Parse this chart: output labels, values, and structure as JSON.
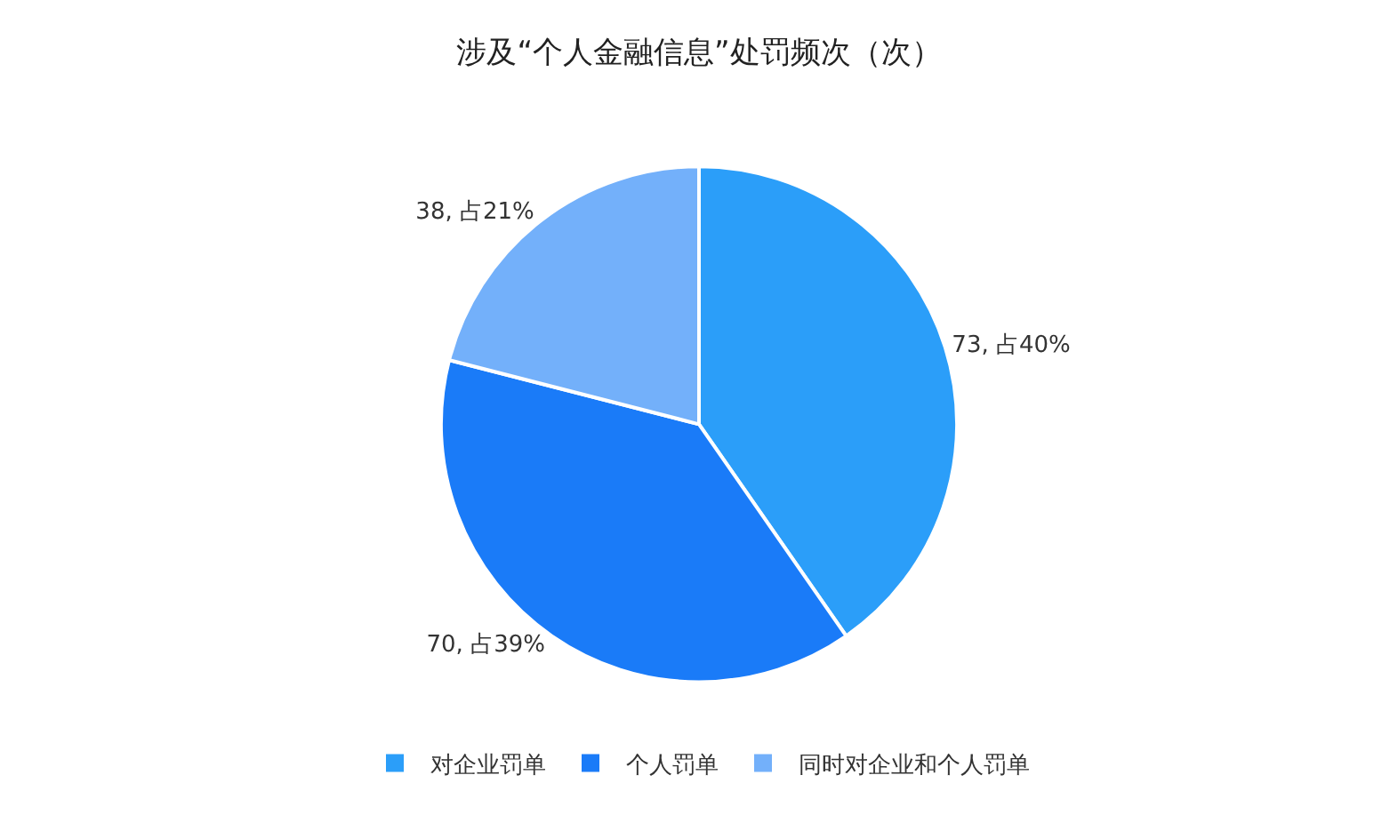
{
  "chart_data": {
    "type": "pie",
    "title": "涉及“个人金融信息”处罚频次（次）",
    "categories": [
      "对企业罚单",
      "个人罚单",
      "同时对企业和个人罚单"
    ],
    "values": [
      73,
      70,
      38
    ],
    "colors": [
      "#2b9ef9",
      "#1a7bf8",
      "#73b0fa"
    ],
    "value_labels": [
      "73, 占40%",
      "70, 占39%",
      "38, 占21%"
    ],
    "legend": "bottom"
  }
}
